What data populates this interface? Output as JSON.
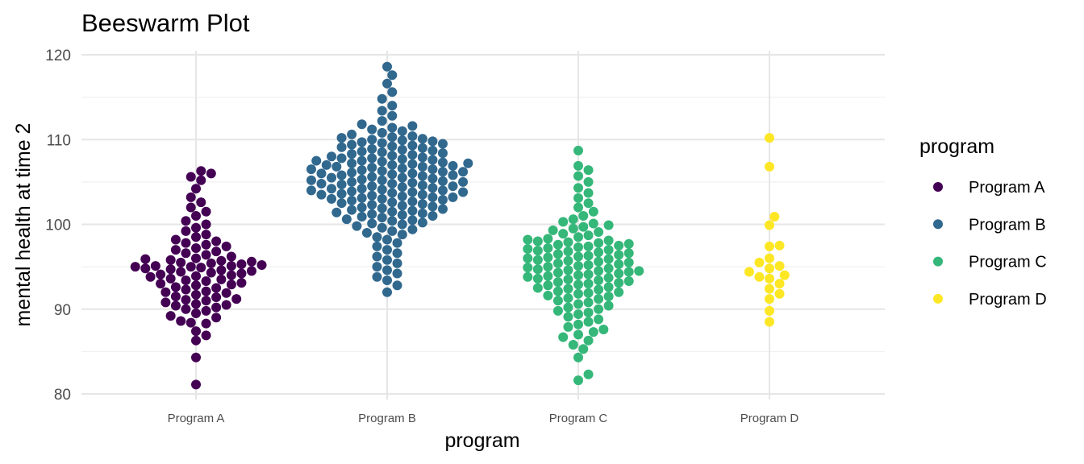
{
  "chart_data": {
    "type": "scatter",
    "subtype": "beeswarm",
    "title": "Beeswarm Plot",
    "xlabel": "program",
    "ylabel": "mental health at time 2",
    "ylim": [
      80,
      120
    ],
    "yticks": [
      80,
      90,
      100,
      110,
      120
    ],
    "grid": true,
    "legend": {
      "title": "program",
      "position": "right",
      "entries": [
        "Program A",
        "Program B",
        "Program C",
        "Program D"
      ]
    },
    "categories": [
      "Program A",
      "Program B",
      "Program C",
      "Program D"
    ],
    "colors": {
      "Program A": "#440154",
      "Program B": "#31688e",
      "Program C": "#35b779",
      "Program D": "#fde725"
    },
    "series": [
      {
        "name": "Program A",
        "values": [
          81.1,
          84.3,
          86.3,
          86.9,
          87.4,
          88.3,
          88.4,
          88.6,
          89.0,
          89.2,
          89.5,
          89.8,
          90.0,
          90.2,
          90.4,
          90.5,
          90.6,
          90.8,
          91.0,
          91.1,
          91.2,
          91.4,
          91.5,
          91.7,
          91.9,
          92.0,
          92.1,
          92.3,
          92.5,
          92.6,
          92.8,
          92.9,
          93.0,
          93.1,
          93.3,
          93.4,
          93.5,
          93.6,
          93.8,
          93.9,
          94.0,
          94.1,
          94.2,
          94.3,
          94.4,
          94.5,
          94.6,
          94.7,
          94.8,
          94.9,
          95.0,
          95.0,
          95.1,
          95.1,
          95.2,
          95.3,
          95.4,
          95.5,
          95.6,
          95.7,
          95.8,
          95.9,
          96.0,
          96.2,
          96.4,
          96.6,
          96.8,
          97.0,
          97.2,
          97.4,
          97.6,
          97.8,
          98.0,
          98.2,
          98.5,
          98.8,
          99.2,
          99.6,
          100.0,
          100.4,
          101.0,
          101.5,
          102.0,
          102.6,
          103.2,
          104.2,
          105.2,
          105.6,
          106.0,
          106.3
        ]
      },
      {
        "name": "Program B",
        "values": [
          92.0,
          92.8,
          93.4,
          93.8,
          94.2,
          94.6,
          95.0,
          95.4,
          95.8,
          96.2,
          96.6,
          97.0,
          97.4,
          97.8,
          98.2,
          98.5,
          98.8,
          99.0,
          99.2,
          99.4,
          99.6,
          99.8,
          100.0,
          100.1,
          100.2,
          100.4,
          100.5,
          100.6,
          100.8,
          100.9,
          101.0,
          101.1,
          101.2,
          101.3,
          101.4,
          101.5,
          101.6,
          101.7,
          101.8,
          101.9,
          102.0,
          102.1,
          102.2,
          102.3,
          102.4,
          102.5,
          102.6,
          102.7,
          102.8,
          102.9,
          103.0,
          103.0,
          103.1,
          103.2,
          103.2,
          103.3,
          103.4,
          103.5,
          103.5,
          103.6,
          103.7,
          103.8,
          103.8,
          103.9,
          104.0,
          104.0,
          104.1,
          104.2,
          104.2,
          104.3,
          104.4,
          104.5,
          104.5,
          104.6,
          104.7,
          104.8,
          104.8,
          104.9,
          105.0,
          105.0,
          105.1,
          105.2,
          105.2,
          105.3,
          105.4,
          105.5,
          105.5,
          105.6,
          105.7,
          105.8,
          105.8,
          105.9,
          106.0,
          106.0,
          106.1,
          106.2,
          106.2,
          106.3,
          106.4,
          106.5,
          106.5,
          106.6,
          106.7,
          106.8,
          106.8,
          106.9,
          107.0,
          107.0,
          107.1,
          107.2,
          107.2,
          107.3,
          107.4,
          107.5,
          107.5,
          107.6,
          107.7,
          107.8,
          107.8,
          107.9,
          108.0,
          108.1,
          108.2,
          108.3,
          108.4,
          108.5,
          108.6,
          108.7,
          108.8,
          108.9,
          109.0,
          109.1,
          109.2,
          109.3,
          109.4,
          109.5,
          109.6,
          109.7,
          109.8,
          109.9,
          110.0,
          110.1,
          110.2,
          110.3,
          110.4,
          110.6,
          110.8,
          111.0,
          111.2,
          111.4,
          111.6,
          111.8,
          112.2,
          112.8,
          113.4,
          114.0,
          114.8,
          115.6,
          116.6,
          117.6,
          118.6
        ]
      },
      {
        "name": "Program C",
        "values": [
          81.6,
          82.3,
          84.3,
          85.3,
          85.8,
          86.3,
          86.7,
          87.0,
          87.3,
          87.6,
          87.9,
          88.2,
          88.5,
          88.8,
          89.1,
          89.4,
          89.6,
          89.8,
          90.0,
          90.2,
          90.4,
          90.6,
          90.8,
          91.0,
          91.2,
          91.3,
          91.5,
          91.6,
          91.8,
          91.9,
          92.0,
          92.1,
          92.3,
          92.4,
          92.5,
          92.6,
          92.8,
          92.9,
          93.0,
          93.1,
          93.2,
          93.3,
          93.4,
          93.5,
          93.6,
          93.7,
          93.8,
          93.9,
          94.0,
          94.1,
          94.2,
          94.3,
          94.4,
          94.5,
          94.5,
          94.6,
          94.7,
          94.8,
          94.9,
          95.0,
          95.1,
          95.2,
          95.3,
          95.4,
          95.5,
          95.6,
          95.7,
          95.8,
          95.9,
          96.0,
          96.1,
          96.2,
          96.3,
          96.4,
          96.5,
          96.6,
          96.7,
          96.8,
          96.9,
          97.0,
          97.1,
          97.2,
          97.3,
          97.4,
          97.5,
          97.6,
          97.7,
          97.8,
          97.9,
          98.0,
          98.1,
          98.2,
          98.3,
          98.5,
          98.7,
          98.9,
          99.1,
          99.3,
          99.5,
          99.7,
          99.9,
          100.1,
          100.3,
          100.6,
          101.0,
          101.5,
          102.0,
          102.5,
          103.1,
          103.7,
          104.3,
          105.0,
          105.7,
          106.4,
          106.9,
          108.7
        ]
      },
      {
        "name": "Program D",
        "values": [
          88.5,
          89.8,
          91.2,
          91.8,
          92.4,
          93.0,
          93.6,
          93.8,
          94.0,
          94.4,
          94.8,
          95.1,
          95.5,
          96.0,
          97.4,
          97.5,
          99.9,
          100.9,
          106.8,
          110.2
        ]
      }
    ]
  }
}
